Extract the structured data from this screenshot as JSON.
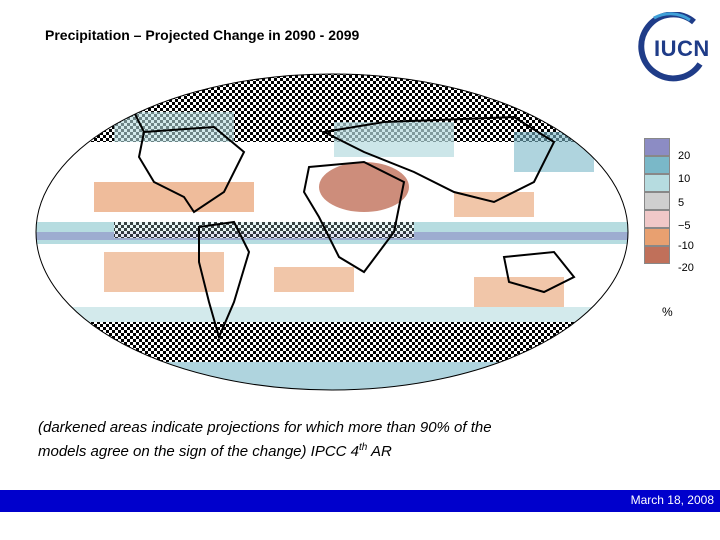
{
  "title": "Precipitation – Projected Change in 2090 - 2099",
  "logo": {
    "text": "IUCN",
    "color": "#1f3c88"
  },
  "legend": {
    "items": [
      {
        "label": "20",
        "color": "#8c8cc4"
      },
      {
        "label": "10",
        "color": "#7ab8c8"
      },
      {
        "label": "5",
        "color": "#b6dce0"
      },
      {
        "label": "−5",
        "color": "#cfcfcf"
      },
      {
        "label": "-10",
        "color": "#f0c8c8"
      },
      {
        "label": "-20",
        "color": "#e8a070"
      },
      {
        "label": "",
        "color": "#c0705a"
      }
    ],
    "unit": "%"
  },
  "caption": {
    "line1": "(darkened areas indicate projections for which more than 90% of the",
    "line2_prefix": "models agree on the sign of the change)   IPCC 4",
    "line2_sup": "th",
    "line2_suffix": " AR"
  },
  "footer": {
    "date": "March 18, 2008",
    "bg": "#0000cc"
  }
}
